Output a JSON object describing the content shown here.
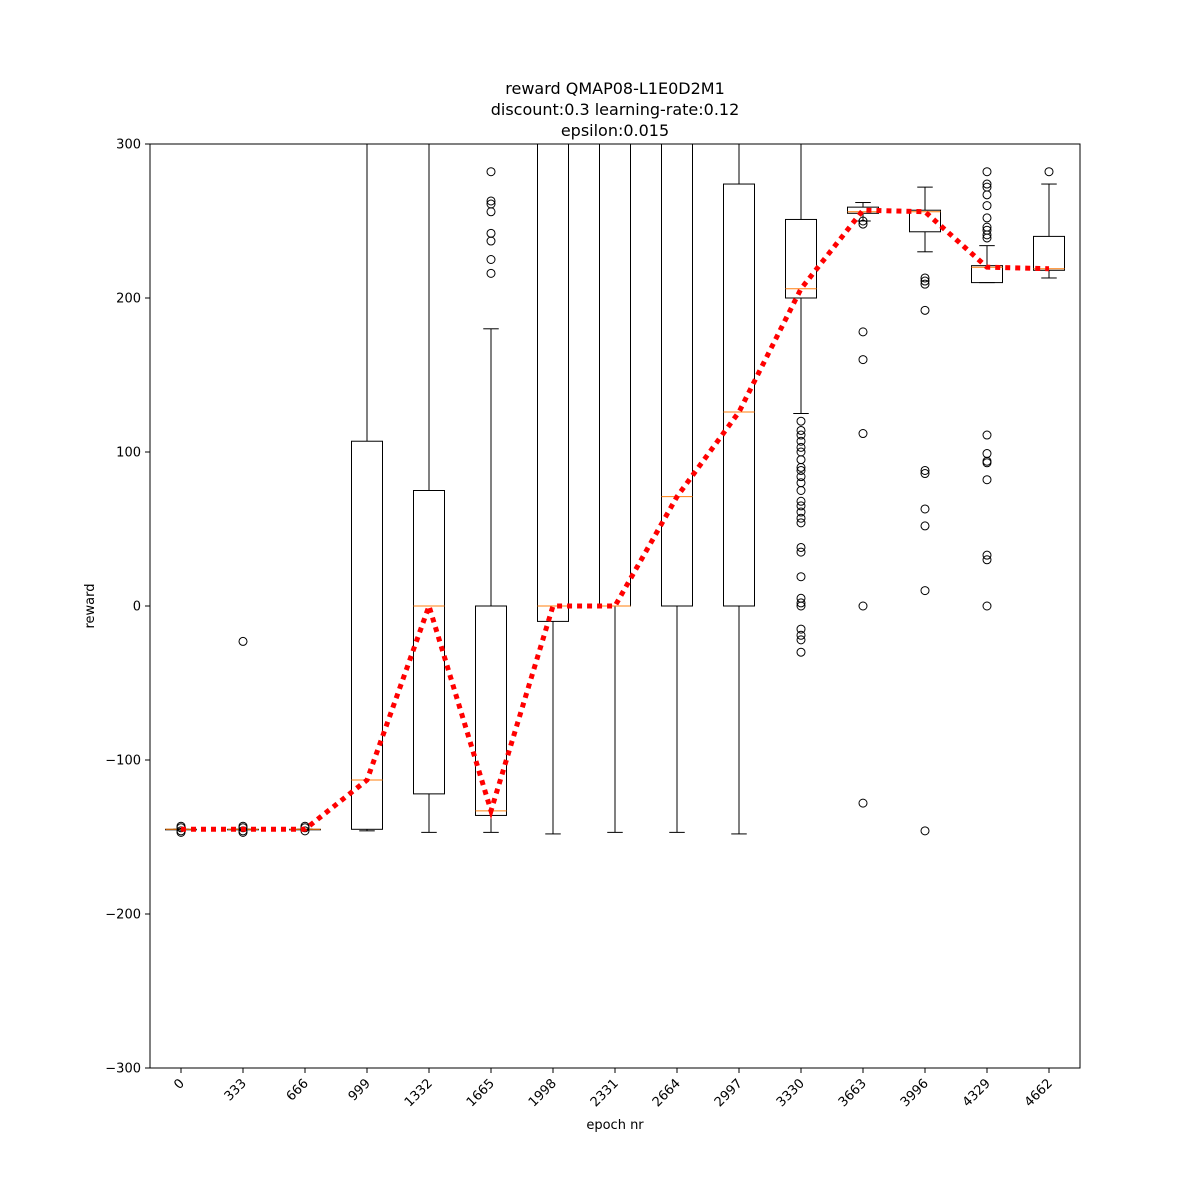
{
  "chart_data": {
    "type": "box",
    "title_lines": [
      "reward QMAP08-L1E0D2M1",
      "discount:0.3 learning-rate:0.12",
      "epsilon:0.015"
    ],
    "xlabel": "epoch nr",
    "ylabel": "reward",
    "ylim": [
      -300,
      300
    ],
    "yticks": [
      -300,
      -200,
      -100,
      0,
      100,
      200,
      300
    ],
    "ytick_labels": [
      "−300",
      "−200",
      "−100",
      "0",
      "100",
      "200",
      "300"
    ],
    "categories": [
      "0",
      "333",
      "666",
      "999",
      "1332",
      "1665",
      "1998",
      "2331",
      "2664",
      "2997",
      "3330",
      "3663",
      "3996",
      "4329",
      "4662"
    ],
    "xtick_rotation_deg": -45,
    "colors": {
      "box": "#000000",
      "median": "#ff7f0e",
      "mean_line": "#ff0000"
    },
    "boxes": [
      {
        "category": "0",
        "whisker_low": -145,
        "q1": -145,
        "median": -145,
        "q3": -145,
        "whisker_high": -145,
        "fliers": [
          -147,
          -146,
          -144,
          -143
        ]
      },
      {
        "category": "333",
        "whisker_low": -145,
        "q1": -145,
        "median": -145,
        "q3": -145,
        "whisker_high": -145,
        "fliers": [
          -147,
          -146,
          -144,
          -143,
          -23
        ]
      },
      {
        "category": "666",
        "whisker_low": -145,
        "q1": -145,
        "median": -145,
        "q3": -145,
        "whisker_high": -145,
        "fliers": [
          -146,
          -144,
          -143
        ]
      },
      {
        "category": "999",
        "whisker_low": -146,
        "q1": -145,
        "median": -113,
        "q3": 107,
        "whisker_high": 320,
        "fliers": []
      },
      {
        "category": "1332",
        "whisker_low": -147,
        "q1": -122,
        "median": 0,
        "q3": 75,
        "whisker_high": 320,
        "fliers": []
      },
      {
        "category": "1665",
        "whisker_low": -147,
        "q1": -136,
        "median": -133,
        "q3": 0,
        "whisker_high": 180,
        "fliers": [
          216,
          225,
          237,
          242,
          256,
          261,
          263,
          282
        ]
      },
      {
        "category": "1998",
        "whisker_low": -148,
        "q1": -10,
        "median": 0,
        "q3": 320,
        "whisker_high": 320,
        "fliers": []
      },
      {
        "category": "2331",
        "whisker_low": -147,
        "q1": 0,
        "median": 0,
        "q3": 320,
        "whisker_high": 320,
        "fliers": []
      },
      {
        "category": "2664",
        "whisker_low": -147,
        "q1": 0,
        "median": 71,
        "q3": 320,
        "whisker_high": 320,
        "fliers": []
      },
      {
        "category": "2997",
        "whisker_low": -148,
        "q1": 0,
        "median": 126,
        "q3": 274,
        "whisker_high": 320,
        "fliers": []
      },
      {
        "category": "3330",
        "whisker_low": 125,
        "q1": 200,
        "median": 206,
        "q3": 251,
        "whisker_high": 320,
        "fliers": [
          -30,
          -22,
          -19,
          -15,
          0,
          2,
          5,
          19,
          35,
          38,
          54,
          57,
          61,
          65,
          68,
          75,
          80,
          84,
          88,
          90,
          95,
          100,
          103,
          107,
          111,
          114,
          120
        ]
      },
      {
        "category": "3663",
        "whisker_low": 250,
        "q1": 255,
        "median": 256,
        "q3": 259,
        "whisker_high": 262,
        "fliers": [
          -128,
          0,
          112,
          160,
          178,
          248,
          250
        ]
      },
      {
        "category": "3996",
        "whisker_low": 230,
        "q1": 243,
        "median": 256,
        "q3": 257,
        "whisker_high": 272,
        "fliers": [
          -146,
          10,
          52,
          63,
          86,
          88,
          192,
          209,
          211,
          213
        ]
      },
      {
        "category": "4329",
        "whisker_low": 210,
        "q1": 210,
        "median": 220,
        "q3": 221,
        "whisker_high": 234,
        "fliers": [
          0,
          30,
          33,
          82,
          93,
          94,
          99,
          111,
          239,
          241,
          244,
          246,
          252,
          260,
          267,
          272,
          274,
          282
        ]
      },
      {
        "category": "4662",
        "whisker_low": 213,
        "q1": 218,
        "median": 219,
        "q3": 240,
        "whisker_high": 274,
        "fliers": [
          282
        ]
      }
    ],
    "mean_line": {
      "name": "",
      "style": "dotted",
      "x": [
        "0",
        "333",
        "666",
        "999",
        "1332",
        "1665",
        "1998",
        "2331",
        "2664",
        "2997",
        "3330",
        "3663",
        "3996",
        "4329",
        "4662"
      ],
      "values": [
        -145,
        -145,
        -145,
        -113,
        0,
        -133,
        0,
        0,
        71,
        126,
        206,
        257,
        256,
        220,
        219
      ]
    }
  }
}
